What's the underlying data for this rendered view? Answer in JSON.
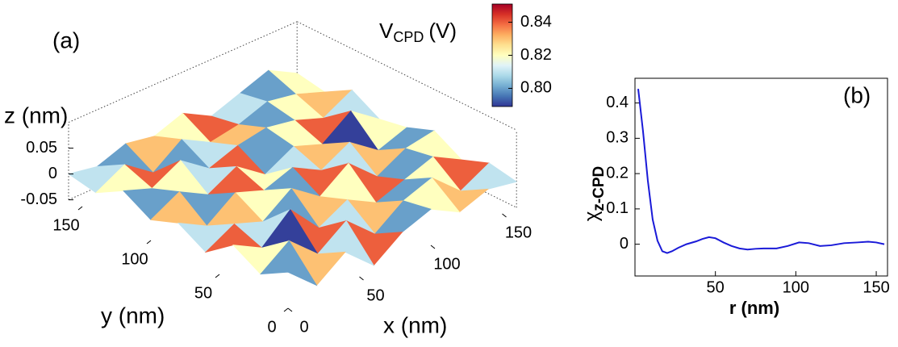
{
  "chart_data": [
    {
      "type": "surface",
      "panel_label": "(a)",
      "zlabel": "z (nm)",
      "xlabel": "x (nm)",
      "ylabel": "y (nm)",
      "colorbar_label": "V",
      "colorbar_label_sub": "CPD",
      "colorbar_unit": "(V)",
      "x": [
        0,
        20,
        40,
        60,
        80,
        100,
        120,
        140,
        160
      ],
      "y": [
        0,
        20,
        40,
        60,
        80,
        100,
        120,
        140,
        160
      ],
      "z": [
        [
          0.02,
          -0.03,
          0.01,
          -0.04,
          0.0,
          0.02,
          -0.01,
          0.01,
          0.0
        ],
        [
          -0.01,
          0.03,
          -0.02,
          0.02,
          -0.03,
          0.01,
          0.03,
          -0.02,
          0.01
        ],
        [
          0.02,
          -0.01,
          0.04,
          -0.02,
          0.01,
          -0.02,
          0.0,
          0.02,
          -0.01
        ],
        [
          -0.02,
          0.01,
          -0.01,
          0.03,
          -0.01,
          0.03,
          -0.02,
          0.01,
          0.02
        ],
        [
          0.01,
          -0.02,
          0.02,
          0.0,
          0.02,
          -0.01,
          0.02,
          -0.02,
          0.0
        ],
        [
          -0.01,
          0.02,
          -0.01,
          0.02,
          -0.02,
          0.01,
          -0.01,
          0.03,
          -0.01
        ],
        [
          0.02,
          0.0,
          0.03,
          -0.01,
          0.01,
          0.02,
          0.01,
          -0.01,
          0.02
        ],
        [
          -0.01,
          0.02,
          -0.02,
          0.02,
          -0.01,
          0.0,
          0.02,
          0.01,
          -0.01
        ],
        [
          0.0,
          -0.01,
          0.01,
          0.0,
          0.02,
          -0.01,
          0.01,
          0.03,
          0.0
        ]
      ],
      "v": [
        [
          0.8,
          0.83,
          0.81,
          0.84,
          0.8,
          0.82,
          0.83,
          0.81
        ],
        [
          0.82,
          0.79,
          0.84,
          0.81,
          0.83,
          0.8,
          0.82,
          0.84
        ],
        [
          0.84,
          0.81,
          0.8,
          0.83,
          0.82,
          0.84,
          0.8,
          0.82
        ],
        [
          0.81,
          0.83,
          0.82,
          0.8,
          0.84,
          0.81,
          0.83,
          0.8
        ],
        [
          0.83,
          0.8,
          0.84,
          0.82,
          0.81,
          0.83,
          0.79,
          0.82
        ],
        [
          0.8,
          0.82,
          0.81,
          0.84,
          0.8,
          0.82,
          0.84,
          0.81
        ],
        [
          0.82,
          0.84,
          0.8,
          0.81,
          0.83,
          0.8,
          0.82,
          0.83
        ],
        [
          0.81,
          0.8,
          0.83,
          0.82,
          0.84,
          0.81,
          0.8,
          0.82
        ]
      ],
      "xlim": [
        0,
        160
      ],
      "ylim": [
        0,
        160
      ],
      "zlim": [
        -0.05,
        0.1
      ],
      "xticks": [
        0,
        50,
        100,
        150
      ],
      "yticks": [
        0,
        50,
        100,
        150
      ],
      "zticks": [
        -0.05,
        0,
        0.05
      ],
      "clim": [
        0.789,
        0.851
      ],
      "cticks": [
        {
          "value": 0.8,
          "label": "0.80"
        },
        0.82,
        0.84
      ],
      "colormap": [
        "#313695",
        "#4575b4",
        "#74add1",
        "#abd9e9",
        "#e0f3f8",
        "#ffffbf",
        "#fee090",
        "#fdae61",
        "#f46d43",
        "#d73027",
        "#a50026"
      ]
    },
    {
      "type": "line",
      "panel_label": "(b)",
      "ylabel": "χ",
      "ylabel_sub": "z-CPD",
      "xlabel": "r (nm)",
      "x": [
        2,
        5,
        8,
        11,
        14,
        17,
        20,
        23,
        27,
        32,
        38,
        42,
        46,
        50,
        55,
        60,
        65,
        70,
        75,
        80,
        88,
        95,
        102,
        108,
        115,
        122,
        130,
        138,
        145,
        150,
        155
      ],
      "series": [
        {
          "color": "#1a1ad8",
          "values": [
            0.44,
            0.32,
            0.18,
            0.07,
            0.01,
            -0.02,
            -0.025,
            -0.02,
            -0.01,
            0.0,
            0.008,
            0.015,
            0.02,
            0.017,
            0.005,
            -0.005,
            -0.012,
            -0.015,
            -0.013,
            -0.012,
            -0.012,
            -0.005,
            0.005,
            0.003,
            -0.005,
            -0.003,
            0.003,
            0.005,
            0.007,
            0.005,
            0.0
          ]
        }
      ],
      "xlim": [
        0,
        157
      ],
      "ylim": [
        -0.09,
        0.47
      ],
      "xticks": [
        50,
        100,
        150
      ],
      "yticks": [
        0,
        0.1,
        0.2,
        0.3,
        0.4
      ]
    }
  ]
}
